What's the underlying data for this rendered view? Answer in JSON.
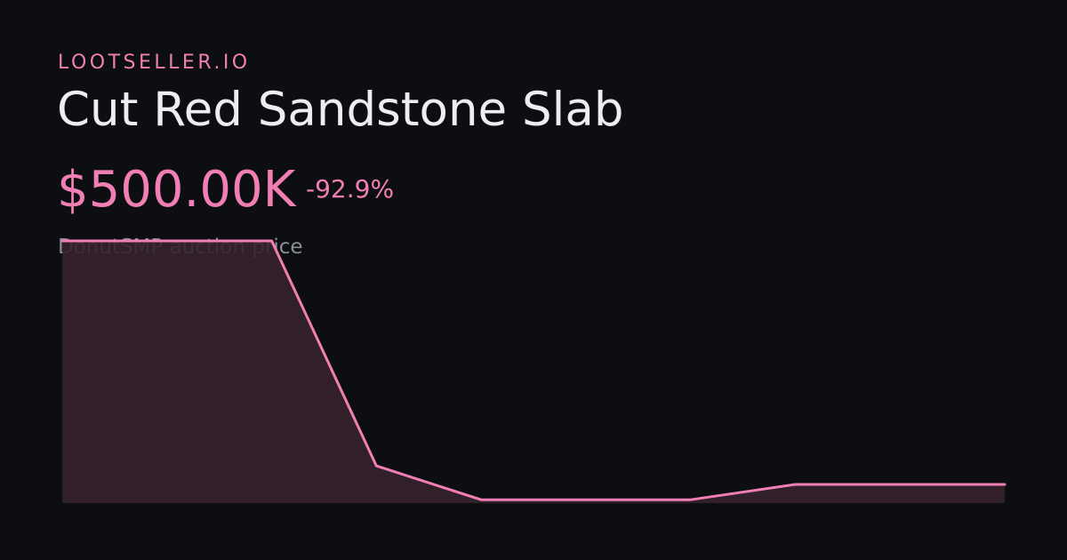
{
  "chart_data": {
    "type": "area",
    "brand": "LOOTSELLER.IO",
    "title": "Cut Red Sandstone Slab",
    "price": "$500.00K",
    "change": "-92.9%",
    "subtitle": "DonutSMP auction price",
    "values": [
      7040000,
      7040000,
      7040000,
      1000000,
      90000,
      90000,
      90000,
      500000,
      500000,
      500000
    ],
    "ylim": [
      0,
      7040000
    ],
    "color": "#f17fb3",
    "fill": "#35222d"
  }
}
